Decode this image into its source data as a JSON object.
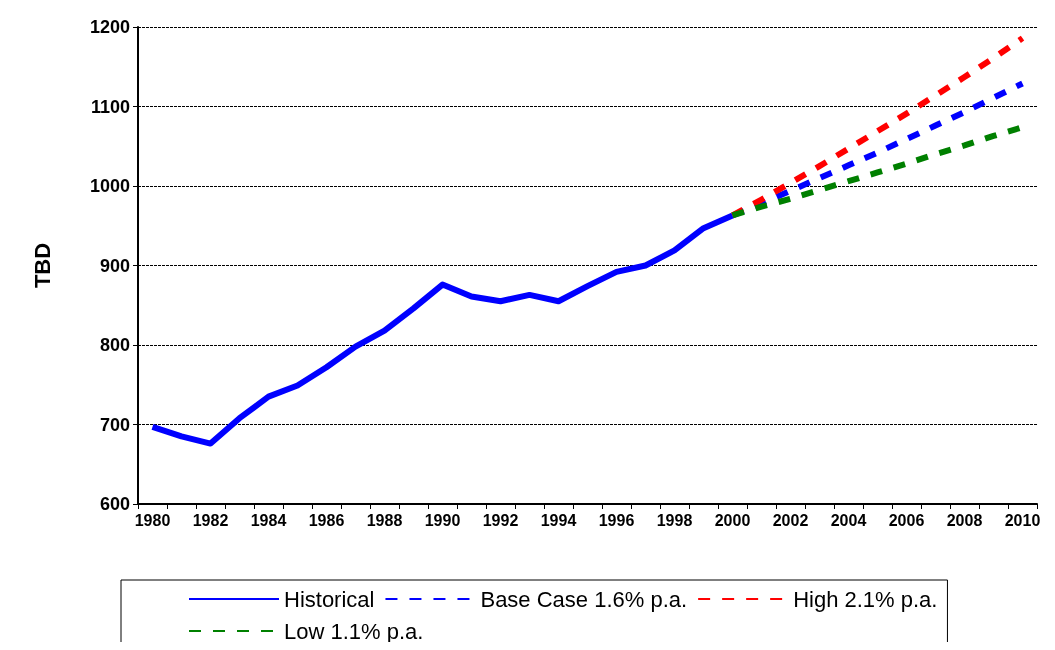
{
  "chart_data": {
    "type": "line",
    "ylabel": "TBD",
    "categories": [
      "1980",
      null,
      "1982",
      null,
      "1984",
      null,
      "1986",
      null,
      "1988",
      null,
      "1990",
      null,
      "1992",
      null,
      "1994",
      null,
      "1996",
      null,
      "1998",
      null,
      "2000",
      null,
      "2002",
      null,
      "2004",
      null,
      "2006",
      null,
      "2008",
      null,
      "2010"
    ],
    "series": [
      {
        "name": "Historical",
        "color": "#0000ff",
        "line_style": "solid",
        "values": [
          697,
          685,
          676,
          708,
          735,
          749,
          772,
          798,
          818,
          846,
          876,
          861,
          855,
          863,
          855,
          874,
          892,
          900,
          919,
          947,
          963,
          null,
          null,
          null,
          null,
          null,
          null,
          null,
          null,
          null,
          null
        ]
      },
      {
        "name": "Base Case 1.6% p.a.",
        "color": "#0000ff",
        "line_style": "dashed",
        "values": [
          null,
          null,
          null,
          null,
          null,
          null,
          null,
          null,
          null,
          null,
          null,
          null,
          null,
          null,
          null,
          null,
          null,
          null,
          null,
          null,
          963,
          978,
          994,
          1010,
          1026,
          1042,
          1059,
          1076,
          1093,
          1111,
          1129
        ]
      },
      {
        "name": "High 2.1% p.a.",
        "color": "#ff0000",
        "line_style": "dashed",
        "values": [
          null,
          null,
          null,
          null,
          null,
          null,
          null,
          null,
          null,
          null,
          null,
          null,
          null,
          null,
          null,
          null,
          null,
          null,
          null,
          null,
          963,
          983,
          1004,
          1025,
          1047,
          1069,
          1091,
          1114,
          1137,
          1161,
          1186
        ]
      },
      {
        "name": "Low 1.1% p.a.",
        "color": "#008000",
        "line_style": "dashed",
        "values": [
          null,
          null,
          null,
          null,
          null,
          null,
          null,
          null,
          null,
          null,
          null,
          null,
          null,
          null,
          null,
          null,
          null,
          null,
          null,
          null,
          963,
          974,
          984,
          995,
          1006,
          1017,
          1028,
          1040,
          1051,
          1063,
          1074
        ]
      }
    ],
    "ylim": [
      600,
      1200
    ],
    "yticks": [
      600,
      700,
      800,
      900,
      1000,
      1100,
      1200
    ],
    "grid": "y",
    "legend": "bottom",
    "marker": "none"
  }
}
